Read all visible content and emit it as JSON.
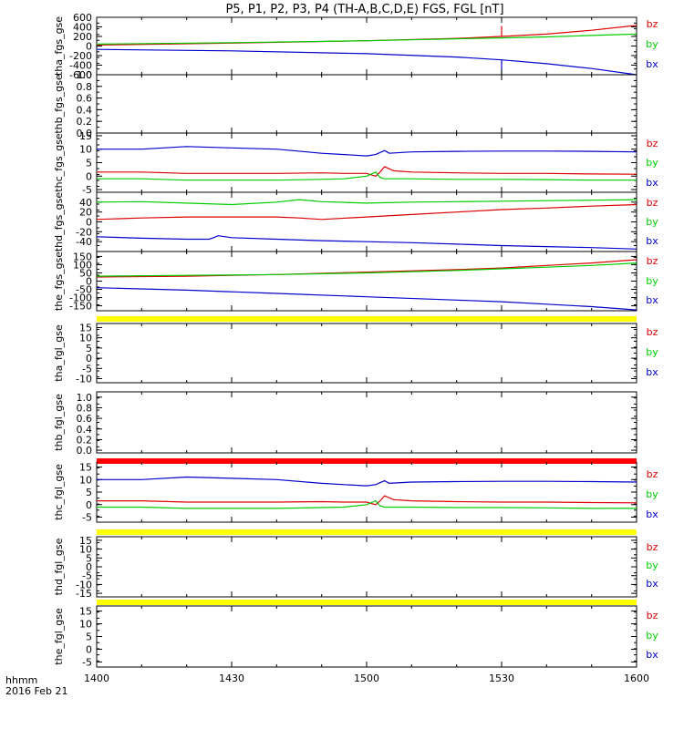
{
  "chart_data": {
    "type": "line",
    "title": "P5, P1, P2, P3, P4 (TH-A,B,C,D,E) FGS, FGL [nT]",
    "time_label": "hhmm",
    "date_label": "2016 Feb 21",
    "xlim": [
      0,
      120
    ],
    "x_ticks": [
      "1400",
      "1430",
      "1500",
      "1530",
      "1600"
    ],
    "series_colors": {
      "bz": "#dd0000",
      "by": "#00cc00",
      "bx": "#0000cc",
      "flag": "#ffff00",
      "flag_red": "#ff0000"
    },
    "panels": [
      {
        "ylabel": "tha_fgs_gse",
        "ylim": [
          -600,
          600
        ],
        "yticks": [
          "600",
          "400",
          "200",
          "0",
          "-200",
          "-400",
          "-600"
        ],
        "legend": [
          "bz",
          "by",
          "bx"
        ],
        "series": [
          {
            "name": "bz",
            "x": [
              0,
              30,
              60,
              80,
              90,
              100,
              110,
              120
            ],
            "y": [
              20,
              60,
              110,
              160,
              200,
              250,
              330,
              430
            ],
            "spike": {
              "x": 90,
              "y": [
                200,
                420
              ]
            }
          },
          {
            "name": "by",
            "x": [
              0,
              30,
              60,
              80,
              90,
              100,
              110,
              120
            ],
            "y": [
              40,
              70,
              110,
              150,
              170,
              190,
              220,
              250
            ]
          },
          {
            "name": "bx",
            "x": [
              0,
              30,
              60,
              80,
              90,
              100,
              110,
              120
            ],
            "y": [
              -70,
              -100,
              -160,
              -230,
              -290,
              -370,
              -470,
              -600
            ],
            "spike": {
              "x": 90,
              "y": [
                -600,
                -290
              ]
            }
          }
        ]
      },
      {
        "ylabel": "thb_fgs_gse",
        "ylim": [
          0,
          1
        ],
        "yticks": [
          "1.0",
          "0.8",
          "0.6",
          "0.4",
          "0.2",
          "0.0"
        ],
        "legend": [],
        "series": []
      },
      {
        "ylabel": "thc_fgs_gse",
        "ylim": [
          -6,
          16
        ],
        "yticks": [
          "15",
          "10",
          "5",
          "0",
          "-5"
        ],
        "legend": [
          "bz",
          "by",
          "bx"
        ],
        "series": [
          {
            "name": "bx",
            "x": [
              0,
              10,
              20,
              30,
              40,
              50,
              55,
              60,
              62,
              64,
              65,
              70,
              80,
              90,
              100,
              110,
              120
            ],
            "y": [
              10,
              10,
              11,
              10.5,
              10,
              8.5,
              8,
              7.5,
              8,
              9.5,
              8.5,
              9,
              9.2,
              9.3,
              9.3,
              9.2,
              9
            ]
          },
          {
            "name": "bz",
            "x": [
              0,
              10,
              20,
              30,
              40,
              50,
              55,
              60,
              62,
              63,
              64,
              66,
              70,
              80,
              90,
              100,
              110,
              120
            ],
            "y": [
              1.5,
              1.5,
              1,
              1,
              1,
              1.2,
              1,
              1,
              0,
              1.5,
              3.5,
              2,
              1.5,
              1.2,
              1,
              1,
              0.8,
              0.7
            ]
          },
          {
            "name": "by",
            "x": [
              0,
              10,
              20,
              30,
              40,
              50,
              55,
              60,
              62,
              63,
              64,
              66,
              70,
              80,
              90,
              100,
              110,
              120
            ],
            "y": [
              -1,
              -1,
              -1.5,
              -1.5,
              -1.5,
              -1.2,
              -1,
              0,
              1.5,
              -0.5,
              -1,
              -1,
              -1,
              -1.2,
              -1.2,
              -1.3,
              -1.5,
              -1.5
            ]
          }
        ]
      },
      {
        "ylabel": "thd_fgs_gse",
        "ylim": [
          -60,
          60
        ],
        "yticks": [
          "40",
          "20",
          "0",
          "-20",
          "-40"
        ],
        "legend": [
          "bz",
          "by",
          "bx"
        ],
        "series": [
          {
            "name": "by",
            "x": [
              0,
              10,
              20,
              30,
              40,
              45,
              50,
              60,
              70,
              80,
              90,
              100,
              110,
              120
            ],
            "y": [
              40,
              41,
              38,
              35,
              40,
              45,
              41,
              38,
              40,
              41,
              42,
              43,
              44,
              45
            ]
          },
          {
            "name": "bz",
            "x": [
              0,
              10,
              20,
              30,
              40,
              45,
              50,
              60,
              70,
              80,
              90,
              100,
              110,
              120
            ],
            "y": [
              5,
              8,
              10,
              10,
              10,
              8,
              5,
              10,
              15,
              20,
              25,
              28,
              32,
              35
            ]
          },
          {
            "name": "bx",
            "x": [
              0,
              10,
              20,
              25,
              26,
              27,
              30,
              40,
              50,
              60,
              70,
              80,
              90,
              100,
              110,
              120
            ],
            "y": [
              -30,
              -33,
              -35,
              -35,
              -32,
              -28,
              -32,
              -35,
              -38,
              -40,
              -42,
              -45,
              -48,
              -50,
              -52,
              -55
            ]
          }
        ]
      },
      {
        "ylabel": "the_fgs_gse",
        "ylim": [
          -180,
          180
        ],
        "yticks": [
          "150",
          "100",
          "50",
          "0",
          "-50",
          "-100",
          "-150"
        ],
        "legend": [
          "bz",
          "by",
          "bx"
        ],
        "series": [
          {
            "name": "bz",
            "x": [
              0,
              20,
              40,
              60,
              80,
              90,
              100,
              110,
              120
            ],
            "y": [
              25,
              30,
              40,
              55,
              70,
              80,
              95,
              110,
              130
            ]
          },
          {
            "name": "by",
            "x": [
              0,
              20,
              40,
              60,
              80,
              90,
              100,
              110,
              120
            ],
            "y": [
              30,
              35,
              40,
              50,
              65,
              75,
              85,
              95,
              110
            ]
          },
          {
            "name": "bx",
            "x": [
              0,
              20,
              40,
              60,
              80,
              90,
              100,
              110,
              120
            ],
            "y": [
              -40,
              -55,
              -75,
              -95,
              -115,
              -125,
              -140,
              -155,
              -175
            ]
          }
        ]
      },
      {
        "ylabel": "tha_fgl_gse",
        "ylim": [
          -12,
          17
        ],
        "yticks": [
          "15",
          "10",
          "5",
          "0",
          "-5",
          "-10"
        ],
        "legend": [
          "bz",
          "by",
          "bx"
        ],
        "flag": "flag",
        "series": []
      },
      {
        "ylabel": "thb_fgl_gse",
        "ylim": [
          -0.05,
          1.1
        ],
        "yticks": [
          "1.0",
          "0.8",
          "0.6",
          "0.4",
          "0.2",
          "0.0"
        ],
        "legend": [],
        "series": []
      },
      {
        "ylabel": "thc_fgl_gse",
        "ylim": [
          -7,
          17
        ],
        "yticks": [
          "15",
          "10",
          "5",
          "0",
          "-5"
        ],
        "legend": [
          "bz",
          "by",
          "bx"
        ],
        "flag": "flag_red",
        "series": [
          {
            "name": "bx",
            "x": [
              0,
              10,
              20,
              30,
              40,
              50,
              55,
              60,
              62,
              64,
              65,
              70,
              80,
              90,
              100,
              110,
              120
            ],
            "y": [
              10,
              10,
              11,
              10.5,
              10,
              8.5,
              8,
              7.5,
              8,
              9.5,
              8.5,
              9,
              9.2,
              9.3,
              9.3,
              9.2,
              9
            ]
          },
          {
            "name": "bz",
            "x": [
              0,
              10,
              20,
              30,
              40,
              50,
              55,
              60,
              62,
              63,
              64,
              66,
              70,
              80,
              90,
              100,
              110,
              120
            ],
            "y": [
              1.5,
              1.5,
              1,
              1,
              1,
              1.2,
              1,
              1,
              0,
              1.5,
              3.5,
              2,
              1.5,
              1.2,
              1,
              1,
              0.8,
              0.7
            ]
          },
          {
            "name": "by",
            "x": [
              0,
              10,
              20,
              30,
              40,
              50,
              55,
              60,
              62,
              63,
              64,
              66,
              70,
              80,
              90,
              100,
              110,
              120
            ],
            "y": [
              -1,
              -1,
              -1.5,
              -1.5,
              -1.5,
              -1.2,
              -1,
              0,
              1.5,
              -0.5,
              -1,
              -1,
              -1,
              -1.2,
              -1.2,
              -1.3,
              -1.5,
              -1.5
            ]
          }
        ]
      },
      {
        "ylabel": "thd_fgl_gse",
        "ylim": [
          -17,
          17
        ],
        "yticks": [
          "15",
          "10",
          "5",
          "0",
          "-5",
          "-10",
          "-15"
        ],
        "legend": [
          "bz",
          "by",
          "bx"
        ],
        "flag": "flag",
        "series": []
      },
      {
        "ylabel": "the_fgl_gse",
        "ylim": [
          -7,
          17
        ],
        "yticks": [
          "15",
          "10",
          "5",
          "0",
          "-5"
        ],
        "legend": [
          "bz",
          "by",
          "bx"
        ],
        "flag": "flag",
        "series": []
      }
    ]
  }
}
